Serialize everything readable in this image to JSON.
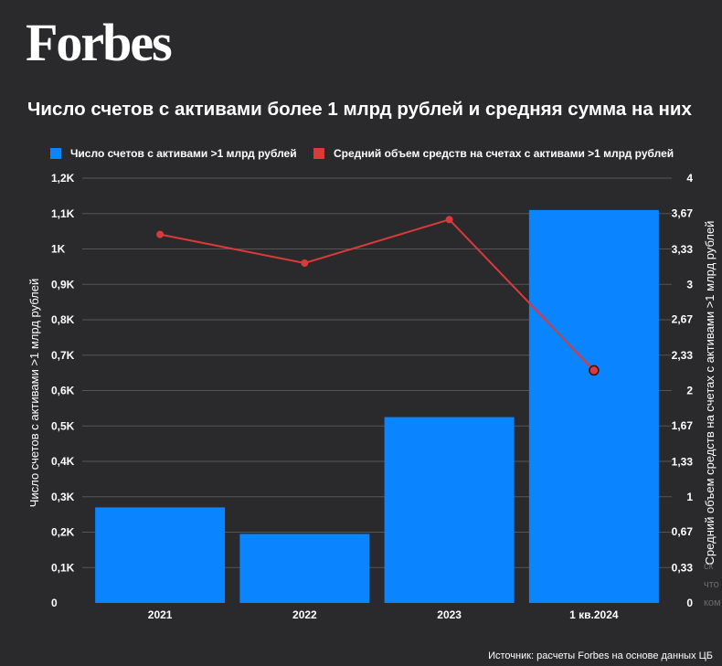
{
  "brand": "Forbes",
  "title": "Число счетов с активами более 1 млрд рублей и средняя сумма на них",
  "source": "Источник: расчеты Forbes на основе данных ЦБ",
  "edge_fragments": [
    "ск",
    "что",
    "ком"
  ],
  "colors": {
    "background": "#2a2a2c",
    "bar": "#0a84ff",
    "line": "#d93a3a",
    "grid": "#555557"
  },
  "chart_data": {
    "type": "bar",
    "title": "Число счетов с активами более 1 млрд рублей и средняя сумма на них",
    "categories": [
      "2021",
      "2022",
      "2023",
      "1 кв.2024"
    ],
    "series": [
      {
        "name": "Число счетов с активами >1 млрд рублей",
        "type": "bar",
        "axis": "left",
        "color": "#0a84ff",
        "values": [
          270,
          195,
          525,
          1110
        ]
      },
      {
        "name": "Средний объем средств на счетах с активами >1 млрд рублей",
        "type": "line",
        "axis": "right",
        "color": "#d93a3a",
        "values": [
          3.47,
          3.2,
          3.61,
          2.19
        ],
        "marker_on": [
          3
        ]
      }
    ],
    "y_left": {
      "label": "Число счетов с активами >1 млрд рублей",
      "range": [
        0,
        1200
      ],
      "ticks": [
        0,
        100,
        200,
        300,
        400,
        500,
        600,
        700,
        800,
        900,
        1000,
        1100,
        1200
      ],
      "tick_labels": [
        "0",
        "0,1K",
        "0,2K",
        "0,3K",
        "0,4K",
        "0,5K",
        "0,6K",
        "0,7K",
        "0,8K",
        "0,9K",
        "1K",
        "1,1K",
        "1,2K"
      ]
    },
    "y_right": {
      "label": "Средний объем средств на счетах с активами >1 млрд рублей",
      "range": [
        0,
        4
      ],
      "ticks": [
        0,
        0.33,
        0.67,
        1,
        1.33,
        1.67,
        2,
        2.33,
        2.67,
        3,
        3.33,
        3.67,
        4
      ],
      "tick_labels": [
        "0",
        "0,33",
        "0,67",
        "1",
        "1,33",
        "1,67",
        "2",
        "2,33",
        "2,67",
        "3",
        "3,33",
        "3,67",
        "4"
      ]
    },
    "grid": true,
    "legend": "top"
  }
}
